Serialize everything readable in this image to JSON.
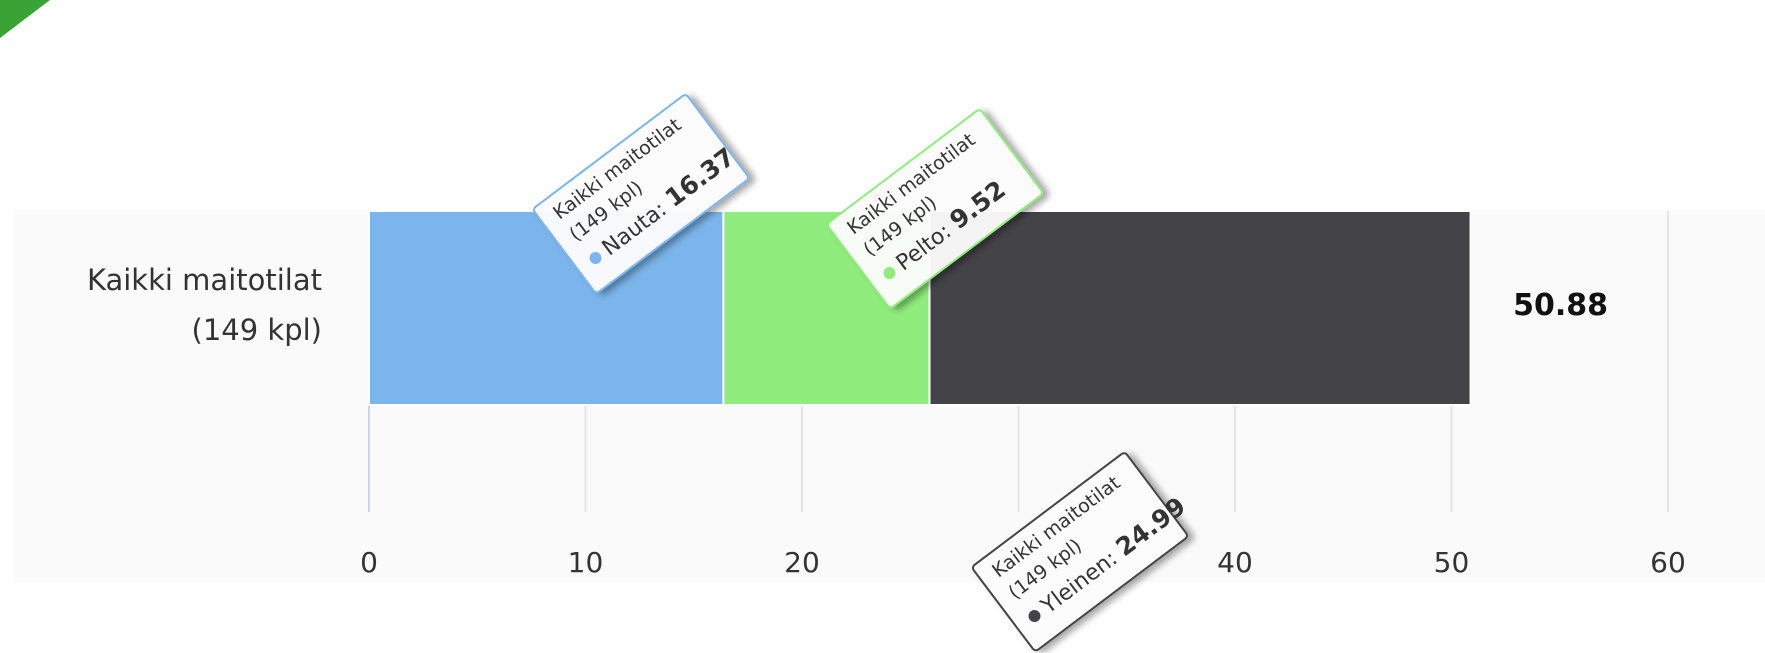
{
  "chart_data": {
    "type": "bar",
    "orientation": "horizontal",
    "stacked": true,
    "categories": [
      "Kaikki maitotilat (149 kpl)"
    ],
    "category_label_lines": [
      "Kaikki maitotilat",
      "(149 kpl)"
    ],
    "series": [
      {
        "name": "Nauta",
        "values": [
          16.37
        ],
        "color": "#7cb5ec"
      },
      {
        "name": "Pelto",
        "values": [
          9.52
        ],
        "color": "#90ed7d"
      },
      {
        "name": "Yleinen",
        "values": [
          24.99
        ],
        "color": "#434348"
      }
    ],
    "total_labels": [
      "50.88"
    ],
    "xlim": [
      0,
      60
    ],
    "xticks": [
      0,
      10,
      20,
      30,
      40,
      50,
      60
    ],
    "xtick_labels": [
      "0",
      "10",
      "20",
      "",
      "40",
      "50",
      "60"
    ],
    "grid": true
  },
  "tooltips": [
    {
      "series": "Nauta",
      "line1": "Kaikki maitotilat",
      "line2": "(149 kpl)",
      "label": "Nauta",
      "value": "16.37",
      "color": "#7cb5ec"
    },
    {
      "series": "Pelto",
      "line1": "Kaikki maitotilat",
      "line2": "(149 kpl)",
      "label": "Pelto",
      "value": "9.52",
      "color": "#90ed7d"
    },
    {
      "series": "Yleinen",
      "line1": "Kaikki maitotilat",
      "line2": "(149 kpl)",
      "label": "Yleinen",
      "value": "24.99",
      "color": "#434348"
    }
  ]
}
